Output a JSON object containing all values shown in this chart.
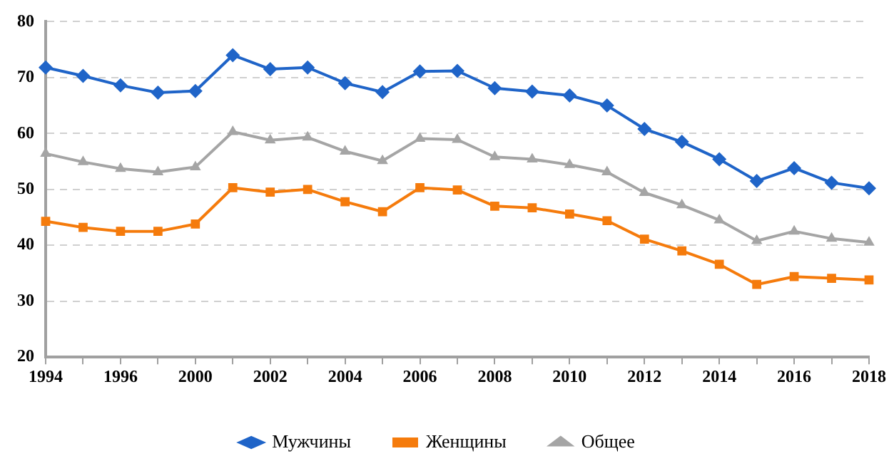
{
  "chart_data": {
    "type": "line",
    "categories": [
      "1994",
      null,
      "1996",
      null,
      "2000",
      null,
      "2002",
      null,
      "2004",
      null,
      "2006",
      null,
      "2008",
      null,
      "2010",
      null,
      "2012",
      null,
      "2014",
      null,
      "2016",
      null,
      "2018"
    ],
    "series": [
      {
        "name": "Мужчины",
        "color": "#1f64c8",
        "marker": "diamond",
        "values": [
          71.8,
          70.3,
          68.6,
          67.3,
          67.6,
          74.0,
          71.5,
          71.8,
          69.0,
          67.4,
          71.1,
          71.2,
          68.1,
          67.5,
          66.8,
          65.0,
          60.8,
          58.5,
          55.4,
          51.5,
          53.8,
          51.2,
          50.2
        ]
      },
      {
        "name": "Женщины",
        "color": "#f57b0c",
        "marker": "square",
        "values": [
          44.3,
          43.2,
          42.5,
          42.5,
          43.8,
          50.3,
          49.5,
          50.0,
          47.8,
          46.0,
          50.3,
          49.9,
          47.0,
          46.7,
          45.6,
          44.4,
          41.1,
          39.0,
          36.6,
          33.0,
          34.4,
          34.1,
          33.8
        ]
      },
      {
        "name": "Общее",
        "color": "#a5a5a5",
        "marker": "triangle",
        "values": [
          56.4,
          54.9,
          53.7,
          53.1,
          54.0,
          60.3,
          58.8,
          59.3,
          56.8,
          55.1,
          59.1,
          58.9,
          55.8,
          55.4,
          54.4,
          53.1,
          49.4,
          47.2,
          44.5,
          40.8,
          42.5,
          41.2,
          40.5
        ]
      }
    ],
    "ylim": [
      20,
      80
    ],
    "yticks": [
      20,
      30,
      40,
      50,
      60,
      70,
      80
    ],
    "grid": "y",
    "legend": "bottom",
    "line_style": "solid"
  }
}
